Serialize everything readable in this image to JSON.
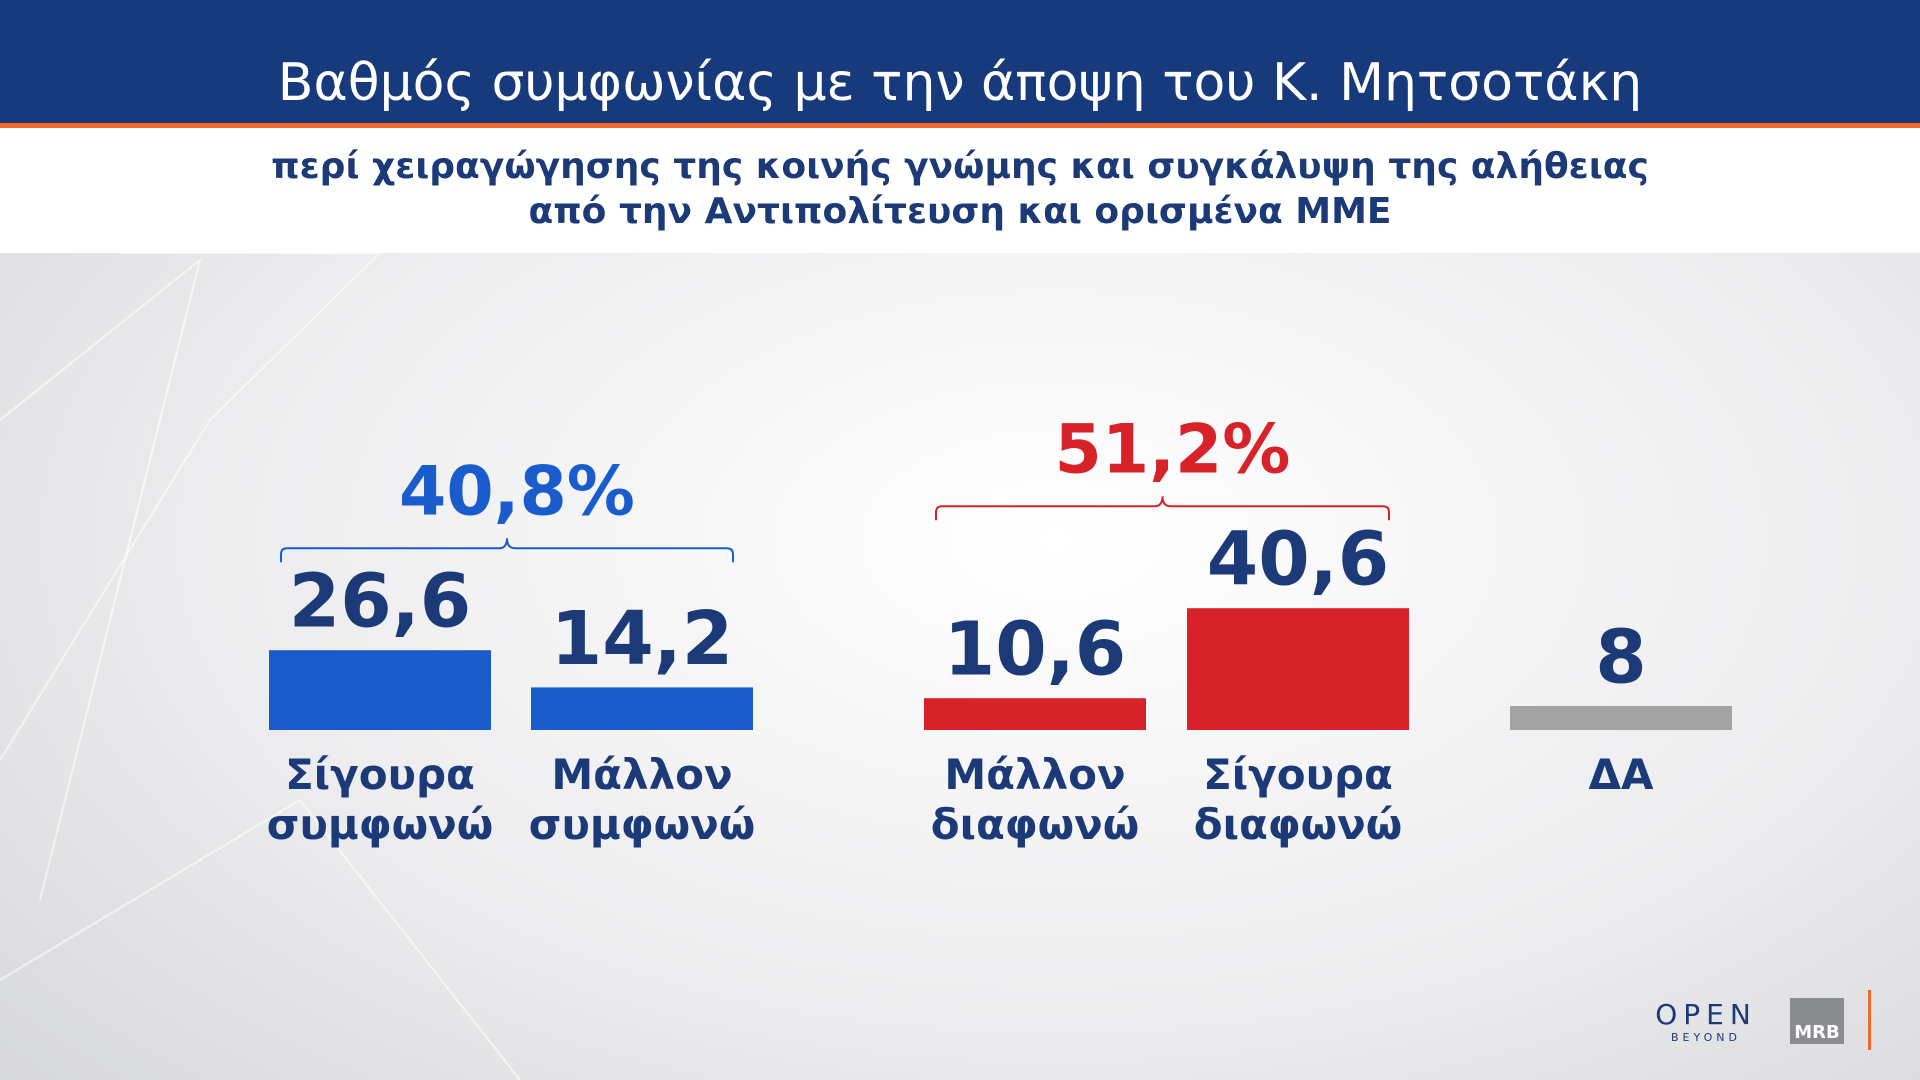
{
  "chart_data": {
    "type": "bar",
    "title": "Βαθμός συμφωνίας με την άποψη του Κ. Μητσοτάκη",
    "subtitle": [
      "περί χειραγώγησης της κοινής γνώμης και συγκάλυψη της αλήθειας",
      "από την Αντιπολίτευση και ορισμένα ΜΜΕ"
    ],
    "categories": [
      "Σίγουρα συμφωνώ",
      "Μάλλον συμφωνώ",
      "Μάλλον διαφωνώ",
      "Σίγουρα διαφωνώ",
      "ΔΑ"
    ],
    "values": [
      26.6,
      14.2,
      10.6,
      40.6,
      8
    ],
    "value_labels": [
      "26,6",
      "14,2",
      "10,6",
      "40,6",
      "8"
    ],
    "colors": [
      "#1a5ccc",
      "#1a5ccc",
      "#d8222a",
      "#d8222a",
      "#a3a3a3"
    ],
    "groups": [
      {
        "value": 40.8,
        "value_label": "40,8%",
        "color": "#1a5ccc",
        "categories": [
          "Σίγουρα συμφωνώ",
          "Μάλλον συμφωνώ"
        ]
      },
      {
        "value": 51.2,
        "value_label": "51,2%",
        "color": "#d8222a",
        "categories": [
          "Μάλλον διαφωνώ",
          "Σίγουρα διαφωνώ"
        ]
      }
    ],
    "logos": [
      "OPEN",
      "BEYOND",
      "MRB"
    ]
  }
}
